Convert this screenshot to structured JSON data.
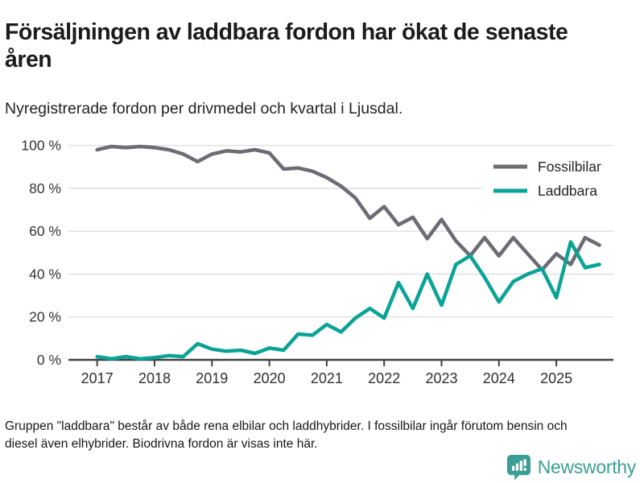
{
  "header": {
    "title": "Försäljningen av laddbara fordon har ökat de senaste åren",
    "subtitle": "Nyregistrerade fordon per drivmedel och kvartal i Ljusdal."
  },
  "footer": {
    "note": "Gruppen \"laddbara\" består av både rena elbilar och laddhybrider. I fossilbilar ingår förutom bensin och diesel även elhybrider. Biodrivna fordon är visas inte här.",
    "brand_name": "Newsworthy"
  },
  "colors": {
    "fossil_line": "#6c6c75",
    "laddbara_line": "#0aa396",
    "brand_teal": "#3b9e96",
    "grid": "#dfdfdf",
    "axis": "#404040"
  },
  "chart_data": {
    "type": "line",
    "title": "Försäljningen av laddbara fordon har ökat de senaste åren",
    "subtitle": "Nyregistrerade fordon per drivmedel och kvartal i Ljusdal.",
    "unit": "percent",
    "ylim": [
      0,
      100
    ],
    "yticks": [
      0,
      20,
      40,
      60,
      80,
      100
    ],
    "ytick_suffix": " %",
    "xticks": [
      2017,
      2018,
      2019,
      2020,
      2021,
      2022,
      2023,
      2024,
      2025
    ],
    "grid": "horizontal",
    "legend_position": "top-right",
    "categories": [
      "2017 Q1",
      "2017 Q2",
      "2017 Q3",
      "2017 Q4",
      "2018 Q1",
      "2018 Q2",
      "2018 Q3",
      "2018 Q4",
      "2019 Q1",
      "2019 Q2",
      "2019 Q3",
      "2019 Q4",
      "2020 Q1",
      "2020 Q2",
      "2020 Q3",
      "2020 Q4",
      "2021 Q1",
      "2021 Q2",
      "2021 Q3",
      "2021 Q4",
      "2022 Q1",
      "2022 Q2",
      "2022 Q3",
      "2022 Q4",
      "2023 Q1",
      "2023 Q2",
      "2023 Q3",
      "2023 Q4",
      "2024 Q1",
      "2024 Q2",
      "2024 Q3",
      "2024 Q4",
      "2025 Q1",
      "2025 Q2",
      "2025 Q3",
      "2025 Q4"
    ],
    "series": [
      {
        "name": "Fossilbilar",
        "color": "#6c6c75",
        "values": [
          98,
          99.5,
          99,
          99.5,
          99,
          98,
          96,
          92.5,
          96,
          97.5,
          97,
          98,
          96.5,
          89,
          89.5,
          88,
          85,
          81,
          75.5,
          66,
          71.5,
          63,
          66.5,
          56.5,
          65.5,
          55.5,
          48.5,
          57,
          48.5,
          57,
          49.5,
          42,
          49.5,
          44.5,
          57,
          53.5
        ]
      },
      {
        "name": "Laddbara",
        "color": "#0aa396",
        "values": [
          1.5,
          0.5,
          1.5,
          0.5,
          1,
          2,
          1.5,
          7.5,
          5,
          4,
          4.5,
          3,
          5.5,
          4.5,
          12,
          11.5,
          16.5,
          13,
          19.5,
          24,
          19.5,
          36,
          24,
          40,
          25.5,
          44.5,
          48.5,
          38.5,
          27,
          36.5,
          40,
          42.5,
          29,
          55,
          43,
          44.5
        ]
      }
    ]
  }
}
